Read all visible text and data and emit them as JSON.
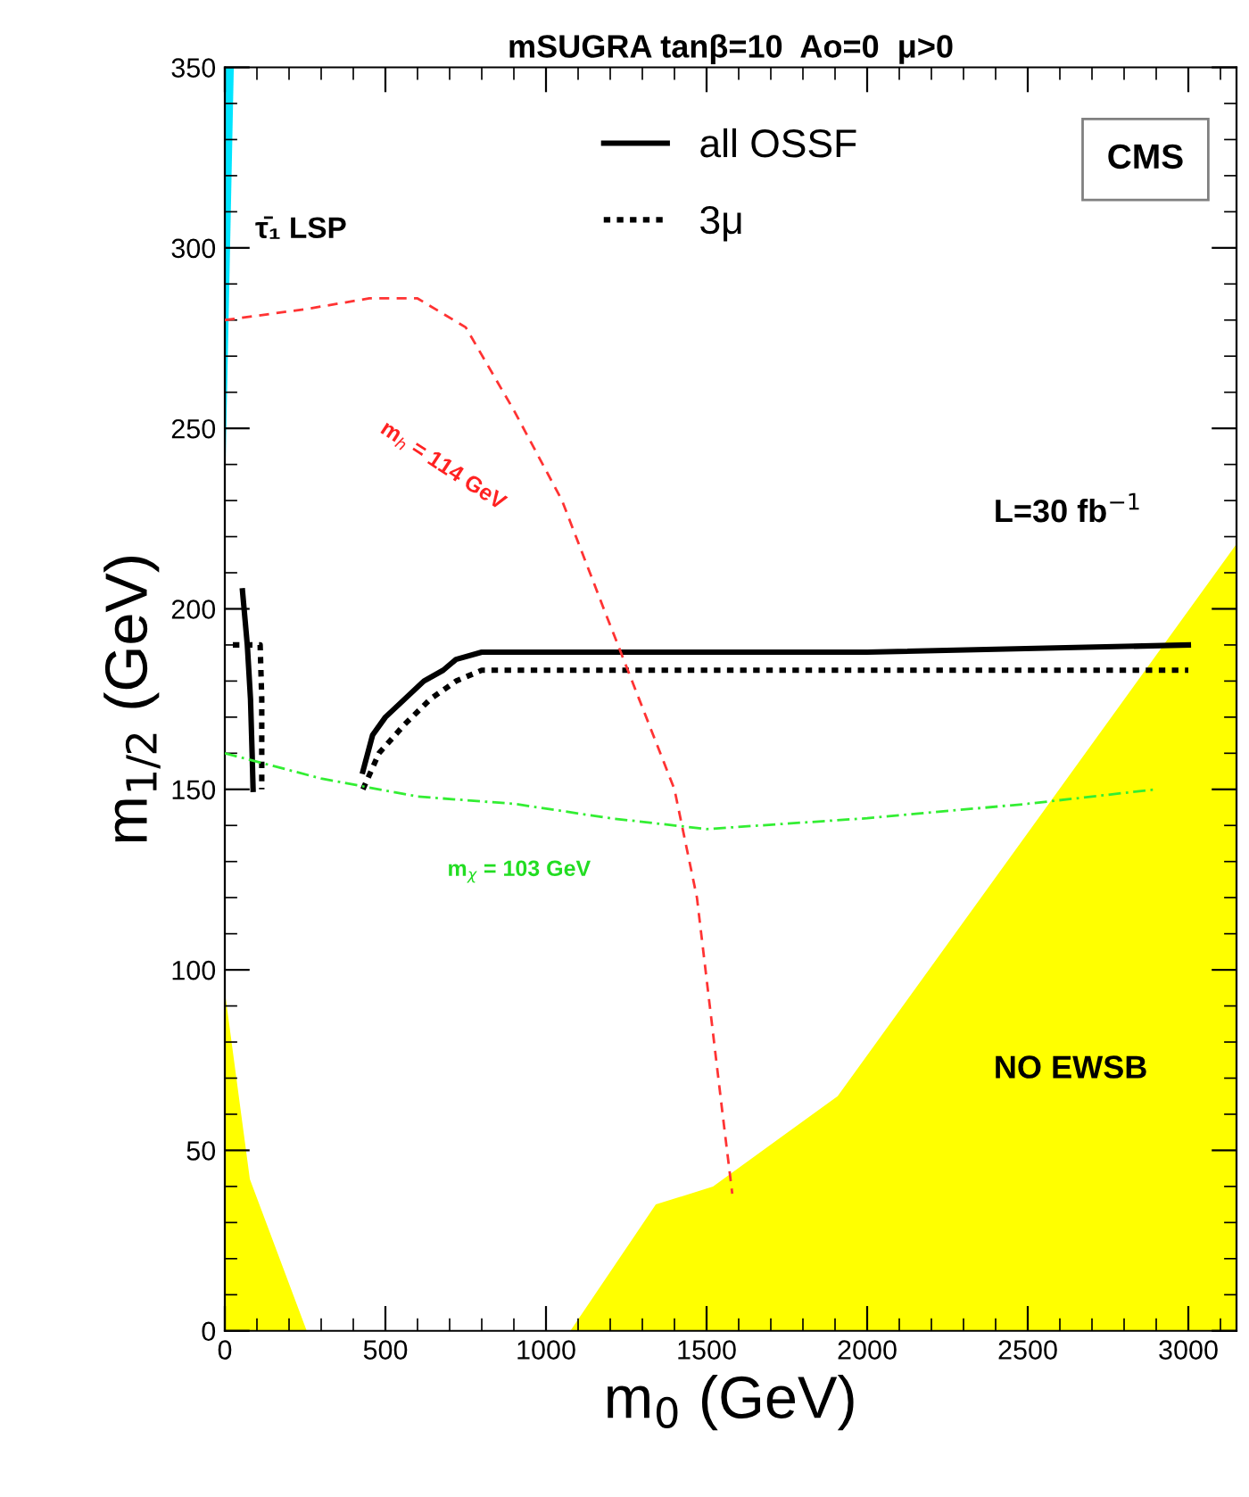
{
  "chart_data": {
    "type": "line",
    "title": "mSUGRA tanβ=10  Ao=0  μ>0",
    "xlabel": "m$_{0}$ (GeV)",
    "ylabel": "m$_{1/2}$ (GeV)",
    "xlim": [
      0,
      3150
    ],
    "ylim": [
      0,
      350
    ],
    "xticks": [
      0,
      500,
      1000,
      1500,
      2000,
      2500,
      3000
    ],
    "yticks": [
      0,
      50,
      100,
      150,
      200,
      250,
      300,
      350
    ],
    "grid": false,
    "legend": "top",
    "marker": "none",
    "series": [
      {
        "type": "area",
        "color": "#ffff00",
        "x": [
          1076,
          1342,
          1520,
          1908,
          3150,
          3150
        ],
        "values": [
          0,
          35,
          40,
          65,
          218,
          0
        ]
      },
      {
        "type": "area",
        "color": "#ffff00",
        "x": [
          0,
          0,
          78,
          255
        ],
        "values": [
          0,
          94,
          42,
          0
        ]
      },
      {
        "type": "area",
        "color": "#00e5ff",
        "x": [
          0,
          28,
          0
        ],
        "values": [
          230,
          350,
          350
        ]
      },
      {
        "name": "all OSSF",
        "color": "#000000",
        "line_style": "solid",
        "x": [
          55,
          70,
          80,
          85,
          88,
          null,
          430,
          460,
          500,
          560,
          620,
          680,
          720,
          800,
          1000,
          2000,
          3000
        ],
        "values": [
          205,
          190,
          175,
          160,
          150,
          null,
          155,
          165,
          170,
          175,
          180,
          183,
          186,
          188,
          188,
          188,
          190
        ]
      },
      {
        "name": "3μ",
        "color": "#000000",
        "line_style": "dotted",
        "x": [
          25,
          110,
          115,
          115,
          null,
          430,
          480,
          560,
          640,
          720,
          800,
          3000
        ],
        "values": [
          190,
          190,
          175,
          150,
          null,
          150,
          160,
          168,
          175,
          180,
          183,
          183
        ]
      },
      {
        "color": "#ff3333",
        "line_style": "dashed",
        "x": [
          0,
          250,
          450,
          600,
          750,
          900,
          1050,
          1180,
          1290,
          1400,
          1470,
          1510,
          1550,
          1580
        ],
        "values": [
          280,
          283,
          286,
          286,
          278,
          255,
          230,
          200,
          175,
          150,
          120,
          90,
          60,
          38
        ]
      },
      {
        "color": "#33ee33",
        "line_style": "dashdot",
        "x": [
          0,
          300,
          600,
          900,
          1200,
          1500,
          2000,
          2500,
          2900
        ],
        "values": [
          160,
          153,
          148,
          146,
          142,
          139,
          142,
          146,
          150
        ]
      }
    ],
    "annotations": [
      "τ̄₁ LSP",
      "m$_{h}$ = 114 GeV",
      "m$_{χ}$ = 103 GeV",
      "L=30 fb$^{−1}$",
      "NO EWSB",
      "CMS"
    ]
  }
}
